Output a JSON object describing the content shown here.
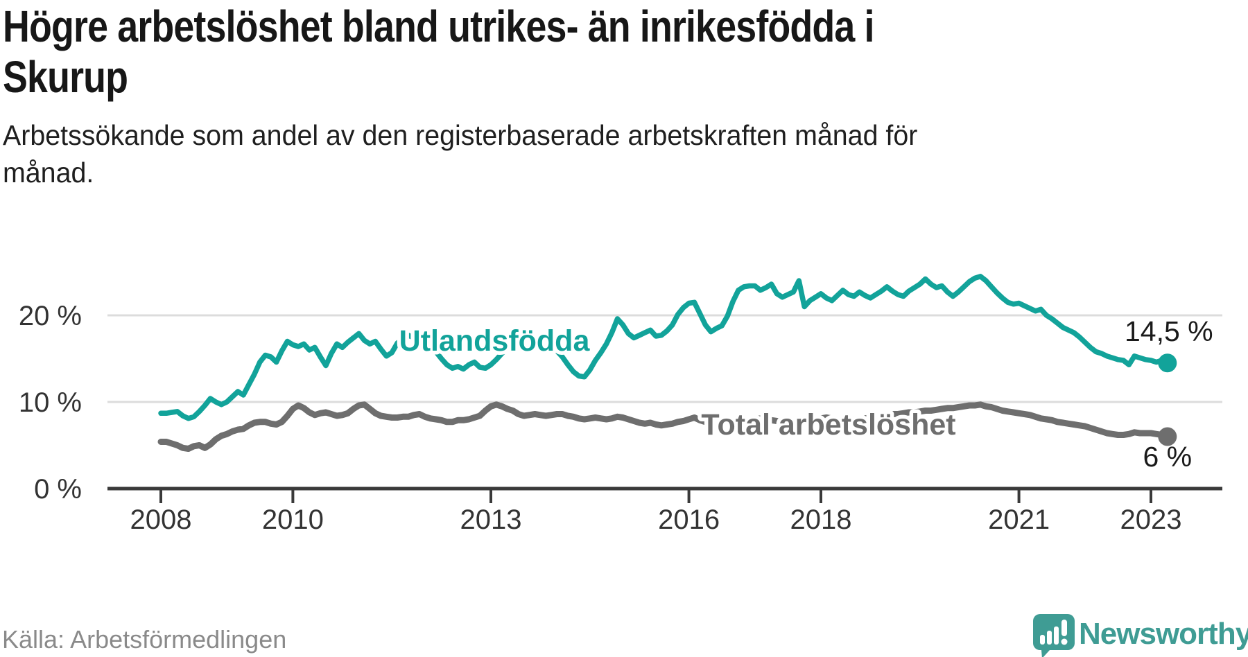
{
  "title_line1": "Högre arbetslöshet bland utrikes- än inrikesfödda i",
  "title_line2": "Skurup",
  "subtitle_line1": "Arbetssökande som andel av den registerbaserade arbetskraften månad för",
  "subtitle_line2": "månad.",
  "source_text": "Källa: Arbetsförmedlingen",
  "logo": {
    "text": "Newsworthy",
    "color": "#3f9c94"
  },
  "colors": {
    "accent_teal": "#12a39a",
    "line_gray": "#6e6e6e",
    "grid": "#dcdcdc",
    "axis": "#3a3a3a",
    "axis_text": "#333333",
    "value_text": "#1a1a1a"
  },
  "chart_data": {
    "type": "line",
    "x_start_year": 2008,
    "x_start_month": 1,
    "x_step_months": 1,
    "x_end_label_value": "2023",
    "xlabel": "",
    "ylabel": "",
    "ylim": [
      0,
      29
    ],
    "grid": "horizontal",
    "legend_position": "inline-labels",
    "yticks": [
      {
        "value": 0,
        "label": "0 %"
      },
      {
        "value": 10,
        "label": "10 %"
      },
      {
        "value": 20,
        "label": "20 %"
      }
    ],
    "xticks": [
      {
        "year": 2008,
        "label": "2008"
      },
      {
        "year": 2010,
        "label": "2010"
      },
      {
        "year": 2013,
        "label": "2013"
      },
      {
        "year": 2016,
        "label": "2016"
      },
      {
        "year": 2018,
        "label": "2018"
      },
      {
        "year": 2021,
        "label": "2021"
      },
      {
        "year": 2023,
        "label": "2023"
      }
    ],
    "series": [
      {
        "name": "Utlandsfödda",
        "color": "#12a39a",
        "end_value_label": "14,5 %",
        "values": [
          8.7,
          8.7,
          8.8,
          8.9,
          8.4,
          8.1,
          8.3,
          8.9,
          9.6,
          10.4,
          10.0,
          9.7,
          10.0,
          10.6,
          11.2,
          10.8,
          12.0,
          13.2,
          14.6,
          15.4,
          15.2,
          14.6,
          15.9,
          17.0,
          16.6,
          16.4,
          16.7,
          16.0,
          16.3,
          15.2,
          14.2,
          15.6,
          16.7,
          16.3,
          16.9,
          17.4,
          17.9,
          17.1,
          16.7,
          17.0,
          16.1,
          15.3,
          15.7,
          16.8,
          17.3,
          17.7,
          17.4,
          17.2,
          17.0,
          16.4,
          15.8,
          15.0,
          14.3,
          13.9,
          14.1,
          13.8,
          14.3,
          14.6,
          14.0,
          13.9,
          14.3,
          14.9,
          15.6,
          16.2,
          16.5,
          16.2,
          16.0,
          16.3,
          16.4,
          16.1,
          15.9,
          16.0,
          15.9,
          15.2,
          14.3,
          13.5,
          13.0,
          12.9,
          13.7,
          14.8,
          15.7,
          16.7,
          18.0,
          19.6,
          18.9,
          17.9,
          17.4,
          17.7,
          18.0,
          18.3,
          17.6,
          17.7,
          18.2,
          18.9,
          20.1,
          20.9,
          21.4,
          21.5,
          20.2,
          18.9,
          18.1,
          18.5,
          18.8,
          19.9,
          21.6,
          22.9,
          23.3,
          23.4,
          23.4,
          22.9,
          23.2,
          23.6,
          22.5,
          22.1,
          22.4,
          22.7,
          24.0,
          21.0,
          21.7,
          22.1,
          22.5,
          22.0,
          21.7,
          22.3,
          22.9,
          22.4,
          22.2,
          22.7,
          22.3,
          22.0,
          22.4,
          22.8,
          23.3,
          22.8,
          22.4,
          22.2,
          22.8,
          23.2,
          23.6,
          24.2,
          23.6,
          23.2,
          23.4,
          22.7,
          22.2,
          22.7,
          23.3,
          23.9,
          24.3,
          24.5,
          24.0,
          23.3,
          22.6,
          22.0,
          21.5,
          21.3,
          21.4,
          21.1,
          20.8,
          20.5,
          20.7,
          20.0,
          19.6,
          19.1,
          18.6,
          18.3,
          18.0,
          17.5,
          16.9,
          16.3,
          15.8,
          15.6,
          15.3,
          15.1,
          14.9,
          14.8,
          14.3,
          15.3,
          15.1,
          14.9,
          14.8,
          14.6,
          14.8,
          14.5
        ]
      },
      {
        "name": "Total arbetslöshet",
        "color": "#6e6e6e",
        "end_value_label": "6 %",
        "values": [
          5.4,
          5.4,
          5.2,
          5.0,
          4.7,
          4.6,
          4.9,
          5.0,
          4.7,
          5.1,
          5.7,
          6.1,
          6.3,
          6.6,
          6.8,
          6.9,
          7.3,
          7.6,
          7.7,
          7.7,
          7.5,
          7.4,
          7.7,
          8.4,
          9.2,
          9.6,
          9.3,
          8.8,
          8.5,
          8.7,
          8.8,
          8.6,
          8.4,
          8.5,
          8.7,
          9.2,
          9.6,
          9.7,
          9.2,
          8.7,
          8.4,
          8.3,
          8.2,
          8.2,
          8.3,
          8.3,
          8.5,
          8.6,
          8.3,
          8.1,
          8.0,
          7.9,
          7.7,
          7.7,
          7.9,
          7.9,
          8.0,
          8.2,
          8.4,
          9.0,
          9.5,
          9.7,
          9.5,
          9.2,
          9.0,
          8.6,
          8.4,
          8.5,
          8.6,
          8.5,
          8.4,
          8.5,
          8.6,
          8.6,
          8.4,
          8.3,
          8.1,
          8.0,
          8.1,
          8.2,
          8.1,
          8.0,
          8.1,
          8.3,
          8.2,
          8.0,
          7.8,
          7.6,
          7.5,
          7.6,
          7.4,
          7.3,
          7.4,
          7.5,
          7.7,
          7.8,
          8.0,
          8.2,
          7.9,
          7.7,
          7.5,
          7.4,
          7.3,
          7.2,
          7.3,
          7.5,
          7.7,
          7.9,
          8.0,
          8.1,
          8.0,
          7.9,
          7.8,
          7.7,
          7.6,
          7.7,
          7.8,
          7.8,
          7.9,
          8.0,
          8.1,
          8.2,
          8.1,
          8.0,
          7.9,
          7.9,
          8.0,
          8.0,
          8.1,
          8.2,
          8.3,
          8.4,
          8.5,
          8.6,
          8.6,
          8.7,
          8.8,
          8.8,
          8.9,
          9.0,
          9.0,
          9.1,
          9.2,
          9.3,
          9.3,
          9.4,
          9.5,
          9.6,
          9.6,
          9.7,
          9.5,
          9.4,
          9.2,
          9.0,
          8.9,
          8.8,
          8.7,
          8.6,
          8.5,
          8.3,
          8.1,
          8.0,
          7.9,
          7.7,
          7.6,
          7.5,
          7.4,
          7.3,
          7.2,
          7.0,
          6.8,
          6.6,
          6.4,
          6.3,
          6.2,
          6.2,
          6.3,
          6.5,
          6.4,
          6.4,
          6.4,
          6.3,
          6.2,
          6.0
        ]
      }
    ]
  }
}
